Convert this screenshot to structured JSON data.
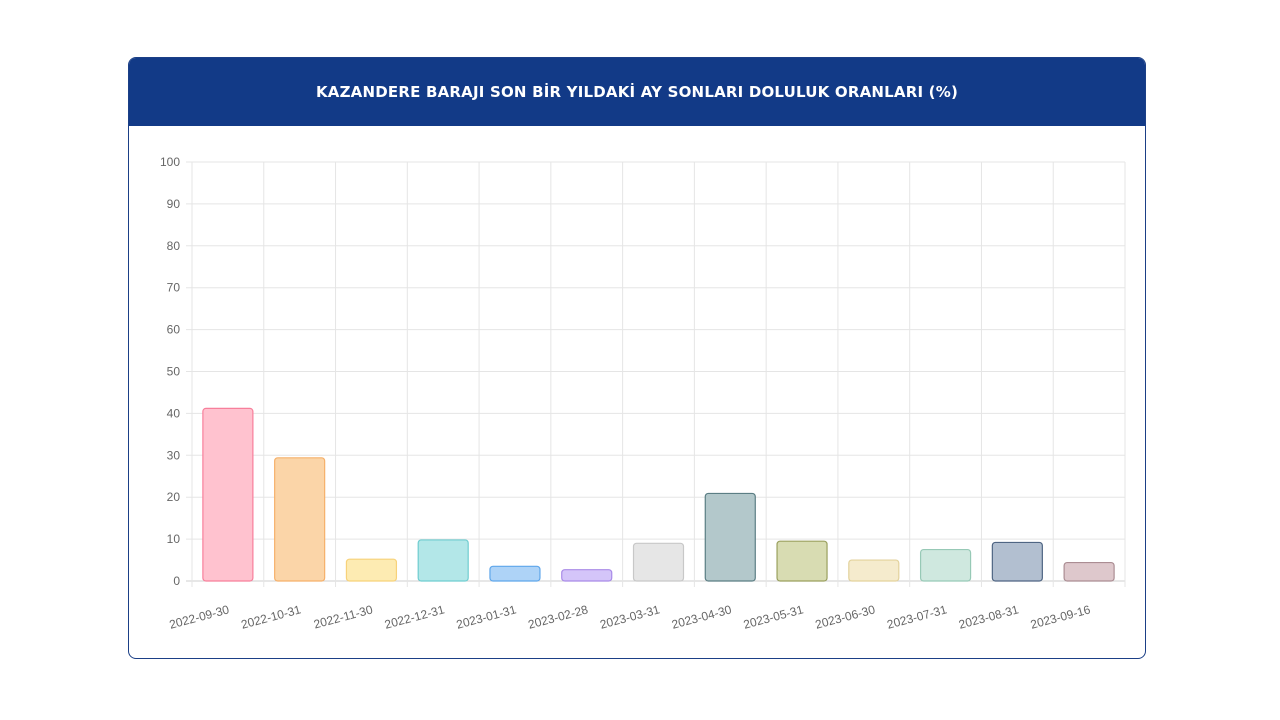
{
  "header": {
    "title": "KAZANDERE BARAJI SON BİR YILDAKİ AY SONLARI DOLULUK ORANLARI (%)"
  },
  "colors": {
    "header_bg": "#123a87",
    "card_border": "#1b3f86",
    "grid": "#e5e5e5",
    "tick_text": "#666666"
  },
  "chart_data": {
    "type": "bar",
    "title": "KAZANDERE BARAJI SON BİR YILDAKİ AY SONLARI DOLULUK ORANLARI (%)",
    "xlabel": "",
    "ylabel": "",
    "ylim": [
      0,
      100
    ],
    "yticks": [
      0,
      10,
      20,
      30,
      40,
      50,
      60,
      70,
      80,
      90,
      100
    ],
    "grid": true,
    "legend": "none",
    "categories": [
      "2022-09-30",
      "2022-10-31",
      "2022-11-30",
      "2022-12-31",
      "2023-01-31",
      "2023-02-28",
      "2023-03-31",
      "2023-04-30",
      "2023-05-31",
      "2023-06-30",
      "2023-07-31",
      "2023-08-31",
      "2023-09-16"
    ],
    "values": [
      41.2,
      29.4,
      5.2,
      9.8,
      3.5,
      2.7,
      9.0,
      20.9,
      9.5,
      5.0,
      7.5,
      9.2,
      4.4
    ],
    "bar_fills": [
      "#ffc2cf",
      "#fbd5a8",
      "#fdebb2",
      "#b3e7e8",
      "#aed3f7",
      "#d4c5f9",
      "#e6e6e6",
      "#b3c8cb",
      "#d8dcb2",
      "#f5ebcd",
      "#cfe8df",
      "#b2bfd0",
      "#dec8cc"
    ],
    "bar_strokes": [
      "#f77f9b",
      "#f5b06a",
      "#f7d27a",
      "#6fcdd0",
      "#5fa6ea",
      "#a98be8",
      "#c8c8c8",
      "#5b7e84",
      "#9aa05e",
      "#e3d29c",
      "#97c9b6",
      "#4f6583",
      "#ab8d93"
    ]
  }
}
